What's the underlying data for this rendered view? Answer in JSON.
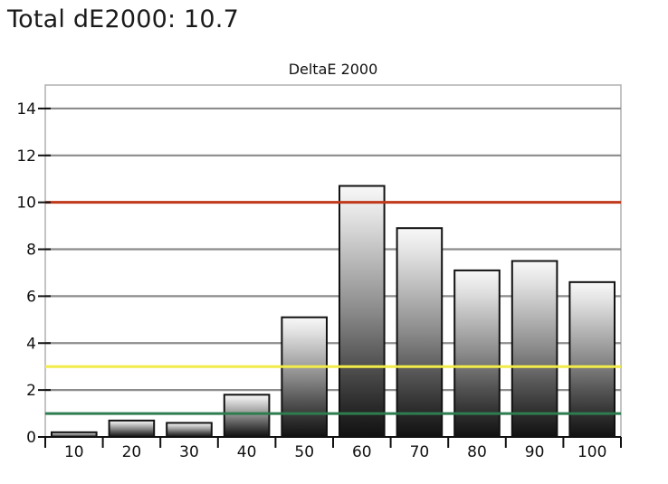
{
  "header": {
    "total_label": "Total dE2000: 10.7"
  },
  "chart_data": {
    "type": "bar",
    "title": "DeltaE 2000",
    "xlabel": "",
    "ylabel": "",
    "categories": [
      "10",
      "20",
      "30",
      "40",
      "50",
      "60",
      "70",
      "80",
      "90",
      "100"
    ],
    "values": [
      0.2,
      0.7,
      0.6,
      1.8,
      5.1,
      10.7,
      8.9,
      7.1,
      7.5,
      6.6
    ],
    "ylim": [
      0,
      15
    ],
    "yticks": [
      0,
      2,
      4,
      6,
      8,
      10,
      12,
      14
    ],
    "grid": true,
    "reference_lines": [
      {
        "value": 10,
        "color": "#c0391b"
      },
      {
        "value": 3,
        "color": "#f2ec4a"
      },
      {
        "value": 1,
        "color": "#2e7d4f"
      }
    ]
  }
}
